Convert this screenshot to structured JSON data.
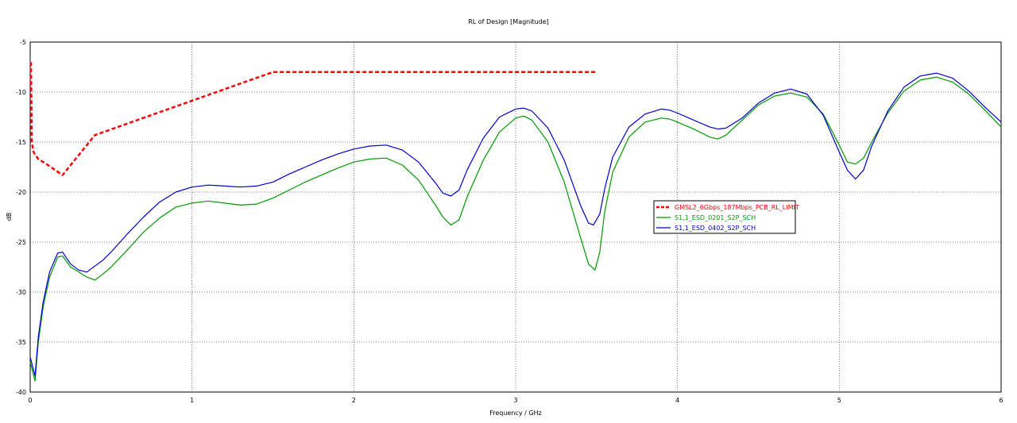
{
  "chart_data": {
    "type": "line",
    "title": "RL of Design [Magnitude]",
    "xlabel": "Frequency / GHz",
    "ylabel": "dB",
    "xlim": [
      0,
      6
    ],
    "ylim": [
      -40,
      -5
    ],
    "xticks": [
      0,
      1,
      2,
      3,
      4,
      5,
      6
    ],
    "yticks": [
      -5,
      -10,
      -15,
      -20,
      -25,
      -30,
      -35,
      -40
    ],
    "xtick_labels": [
      "0",
      "1",
      "2",
      "3",
      "4",
      "5",
      "6"
    ],
    "ytick_labels": [
      "-5",
      "-10",
      "-15",
      "-20",
      "-25",
      "-30",
      "-35",
      "-40"
    ],
    "grid": true,
    "legend_position": "center-right",
    "series": [
      {
        "name": "GMSL2_6Gbps_187Mbps_PCB_RL_LIMIT",
        "color": "#ff0000",
        "style": "dashed",
        "x": [
          0.005,
          0.01,
          0.02,
          0.05,
          0.1,
          0.2,
          0.4,
          1.5,
          3.5
        ],
        "y": [
          -7,
          -15,
          -16,
          -16.7,
          -17.2,
          -18.3,
          -14.3,
          -8,
          -8
        ]
      },
      {
        "name": "S1,1_ESD_0201_S2P_SCH",
        "color": "#009900",
        "style": "solid",
        "x": [
          0,
          0.03,
          0.05,
          0.08,
          0.12,
          0.17,
          0.2,
          0.25,
          0.3,
          0.35,
          0.4,
          0.45,
          0.5,
          0.6,
          0.7,
          0.8,
          0.9,
          1.0,
          1.1,
          1.2,
          1.3,
          1.4,
          1.5,
          1.6,
          1.7,
          1.8,
          1.9,
          2.0,
          2.1,
          2.2,
          2.3,
          2.4,
          2.5,
          2.55,
          2.6,
          2.65,
          2.7,
          2.8,
          2.9,
          3.0,
          3.05,
          3.1,
          3.2,
          3.3,
          3.4,
          3.45,
          3.49,
          3.52,
          3.55,
          3.6,
          3.7,
          3.8,
          3.9,
          3.95,
          4.0,
          4.1,
          4.2,
          4.25,
          4.3,
          4.4,
          4.5,
          4.6,
          4.7,
          4.8,
          4.9,
          5.0,
          5.05,
          5.1,
          5.15,
          5.2,
          5.3,
          5.4,
          5.5,
          5.6,
          5.7,
          5.8,
          5.9,
          6.0
        ],
        "y": [
          -37,
          -38.9,
          -35,
          -31.5,
          -28.5,
          -26.5,
          -26.4,
          -27.5,
          -28,
          -28.5,
          -28.8,
          -28.2,
          -27.5,
          -25.8,
          -24,
          -22.6,
          -21.5,
          -21.1,
          -20.9,
          -21.1,
          -21.3,
          -21.2,
          -20.6,
          -19.8,
          -19,
          -18.3,
          -17.6,
          -17,
          -16.7,
          -16.6,
          -17.3,
          -18.8,
          -21.2,
          -22.5,
          -23.3,
          -22.8,
          -20.5,
          -16.8,
          -14,
          -12.6,
          -12.4,
          -12.8,
          -15,
          -19,
          -24.5,
          -27.2,
          -27.8,
          -26,
          -22,
          -18,
          -14.5,
          -13,
          -12.6,
          -12.7,
          -13,
          -13.7,
          -14.5,
          -14.7,
          -14.3,
          -12.8,
          -11.3,
          -10.4,
          -10.1,
          -10.5,
          -12.2,
          -15.3,
          -17.0,
          -17.2,
          -16.6,
          -15,
          -12.1,
          -9.9,
          -8.8,
          -8.5,
          -9,
          -10.2,
          -11.8,
          -13.5
        ]
      },
      {
        "name": "S1,1_ESD_0402_S2P_SCH",
        "color": "#0000cc",
        "style": "solid",
        "x": [
          0,
          0.03,
          0.05,
          0.08,
          0.12,
          0.17,
          0.2,
          0.25,
          0.3,
          0.35,
          0.4,
          0.45,
          0.5,
          0.6,
          0.7,
          0.8,
          0.9,
          1.0,
          1.1,
          1.2,
          1.3,
          1.4,
          1.5,
          1.6,
          1.7,
          1.8,
          1.9,
          2.0,
          2.1,
          2.2,
          2.3,
          2.4,
          2.5,
          2.55,
          2.6,
          2.65,
          2.7,
          2.8,
          2.9,
          3.0,
          3.05,
          3.1,
          3.2,
          3.3,
          3.4,
          3.45,
          3.48,
          3.52,
          3.55,
          3.6,
          3.7,
          3.8,
          3.9,
          3.95,
          4.0,
          4.1,
          4.2,
          4.25,
          4.3,
          4.4,
          4.5,
          4.6,
          4.7,
          4.8,
          4.9,
          5.0,
          5.05,
          5.1,
          5.15,
          5.2,
          5.3,
          5.4,
          5.5,
          5.6,
          5.7,
          5.8,
          5.9,
          6.0
        ],
        "y": [
          -36.5,
          -38.4,
          -34.5,
          -31,
          -28,
          -26.1,
          -26,
          -27.2,
          -27.8,
          -28,
          -27.4,
          -26.8,
          -26,
          -24.2,
          -22.5,
          -21,
          -20,
          -19.5,
          -19.3,
          -19.4,
          -19.5,
          -19.4,
          -19,
          -18.2,
          -17.5,
          -16.8,
          -16.2,
          -15.7,
          -15.4,
          -15.3,
          -15.8,
          -17,
          -19,
          -20.1,
          -20.4,
          -19.8,
          -17.8,
          -14.6,
          -12.5,
          -11.7,
          -11.6,
          -11.9,
          -13.6,
          -16.8,
          -21.3,
          -23.1,
          -23.3,
          -22.2,
          -19.7,
          -16.5,
          -13.5,
          -12.2,
          -11.7,
          -11.8,
          -12.1,
          -12.8,
          -13.5,
          -13.7,
          -13.6,
          -12.6,
          -11.1,
          -10.1,
          -9.7,
          -10.2,
          -12.3,
          -16,
          -17.8,
          -18.7,
          -17.8,
          -15.4,
          -11.9,
          -9.5,
          -8.4,
          -8.1,
          -8.6,
          -9.9,
          -11.5,
          -13.0
        ]
      }
    ]
  }
}
